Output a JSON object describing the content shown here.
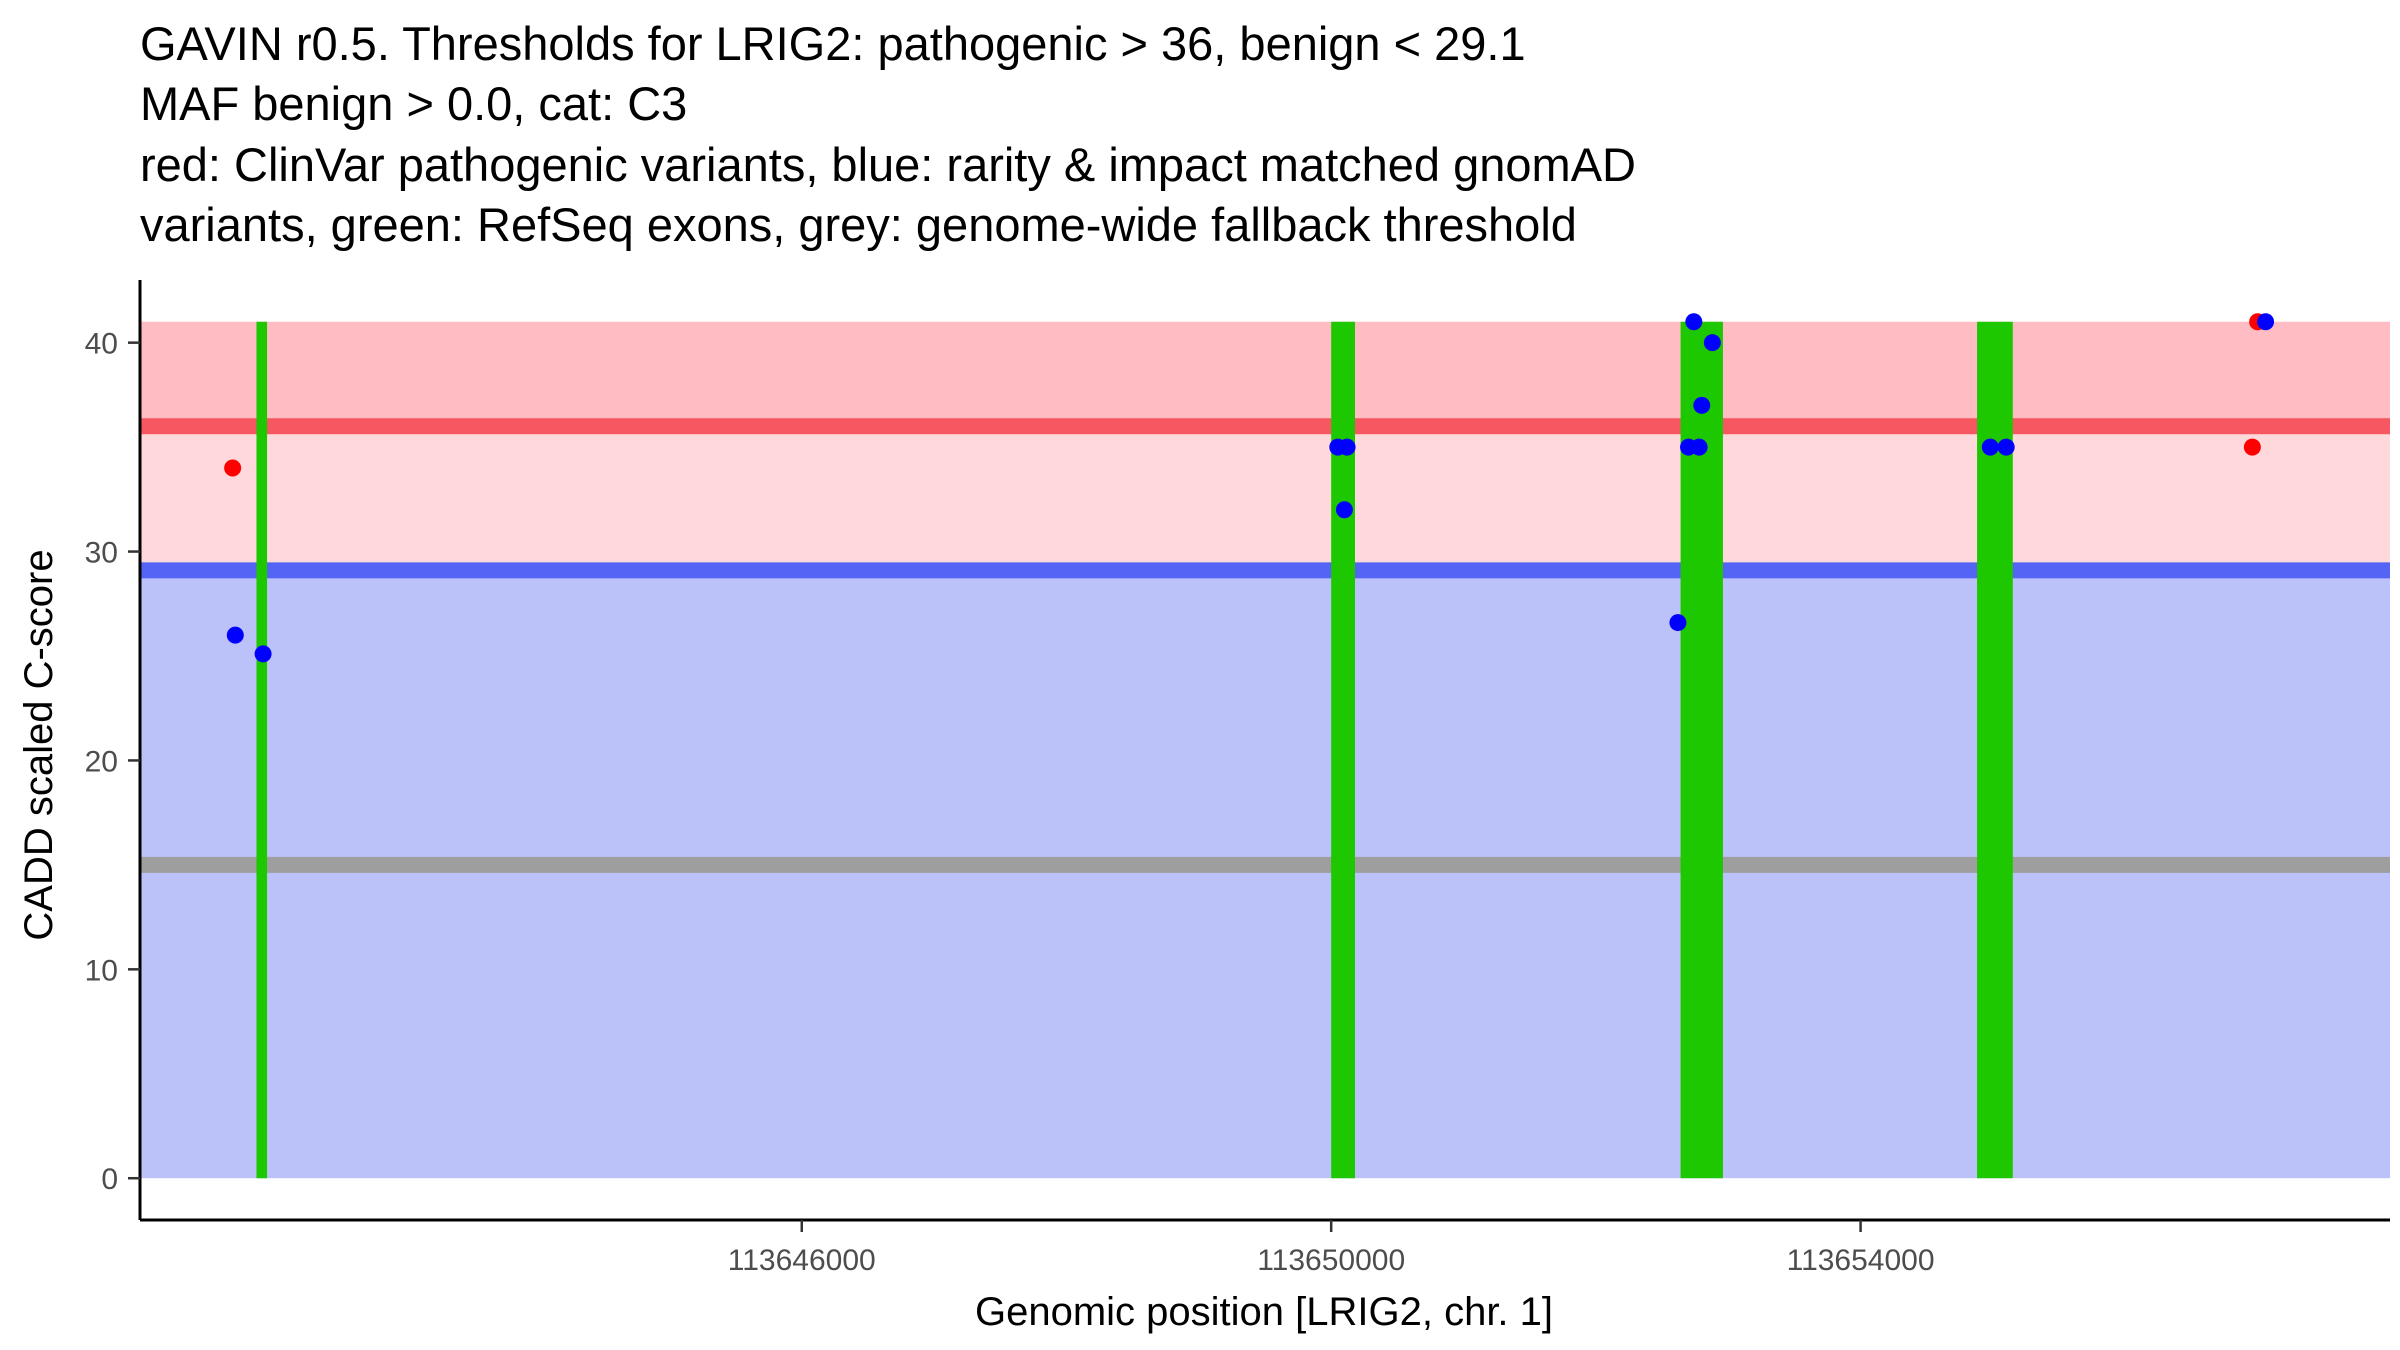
{
  "chart_data": {
    "type": "scatter",
    "title_lines": [
      "GAVIN r0.5. Thresholds for LRIG2: pathogenic > 36, benign < 29.1",
      "MAF benign > 0.0, cat: C3",
      "red: ClinVar pathogenic variants, blue: rarity & impact matched gnomAD",
      "variants, green: RefSeq exons, grey: genome-wide fallback threshold"
    ],
    "xlabel": "Genomic position [LRIG2, chr. 1]",
    "ylabel": "CADD scaled C-score",
    "xlim": [
      113641000,
      113658000
    ],
    "ylim": [
      -2,
      43
    ],
    "x_ticks": [
      113646000,
      113650000,
      113654000
    ],
    "y_ticks": [
      0,
      10,
      20,
      30,
      40
    ],
    "grid": false,
    "thresholds": {
      "pathogenic": 36,
      "benign": 29.1,
      "genome_wide_fallback": 15
    },
    "bands": [
      {
        "name": "pathogenic zone",
        "ymin": 29.1,
        "ymax": 41,
        "color": "#ffd8dc"
      },
      {
        "name": "pathogenic zone upper",
        "ymin": 36,
        "ymax": 41,
        "color": "#ffbcc3"
      },
      {
        "name": "benign zone",
        "ymin": 0,
        "ymax": 29.1,
        "color": "#bbc2fa"
      }
    ],
    "exons": [
      {
        "start": 113641880,
        "end": 113641960
      },
      {
        "start": 113650000,
        "end": 113650180
      },
      {
        "start": 113652640,
        "end": 113652960
      },
      {
        "start": 113654880,
        "end": 113655150
      }
    ],
    "series": [
      {
        "name": "ClinVar pathogenic variants",
        "color": "#ff0000",
        "points": [
          {
            "x": 113641700,
            "y": 34
          },
          {
            "x": 113657000,
            "y": 41
          },
          {
            "x": 113656960,
            "y": 35
          }
        ]
      },
      {
        "name": "rarity & impact matched gnomAD variants",
        "color": "#0000ff",
        "points": [
          {
            "x": 113641720,
            "y": 26
          },
          {
            "x": 113641930,
            "y": 25.1
          },
          {
            "x": 113650050,
            "y": 35
          },
          {
            "x": 113650120,
            "y": 35
          },
          {
            "x": 113650100,
            "y": 32
          },
          {
            "x": 113652620,
            "y": 26.6
          },
          {
            "x": 113652740,
            "y": 41
          },
          {
            "x": 113652700,
            "y": 35
          },
          {
            "x": 113652780,
            "y": 35
          },
          {
            "x": 113652800,
            "y": 37
          },
          {
            "x": 113652880,
            "y": 40
          },
          {
            "x": 113654980,
            "y": 35
          },
          {
            "x": 113655100,
            "y": 35
          },
          {
            "x": 113657060,
            "y": 41
          }
        ]
      }
    ],
    "colors": {
      "pathogenic_line": "#f65761",
      "benign_line": "#5465f5",
      "fallback_line": "#9e9e9e",
      "exon": "#1ec800",
      "pathogenic_point": "#ff0000",
      "benign_point": "#0000ff"
    }
  }
}
